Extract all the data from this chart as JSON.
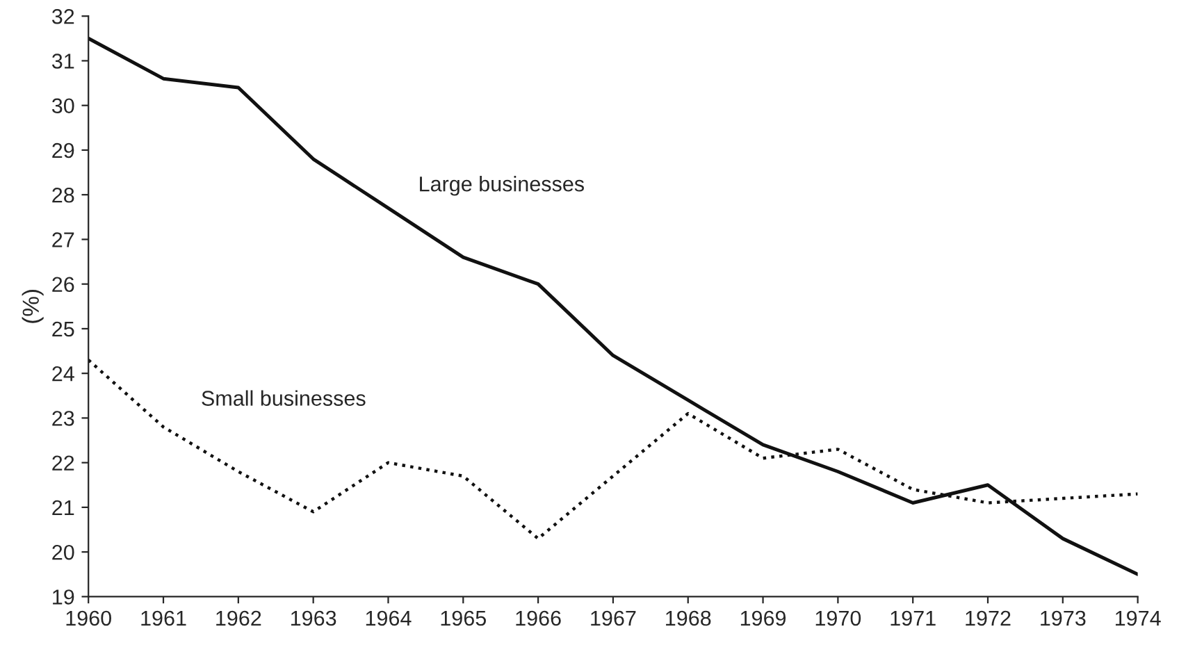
{
  "chart_data": {
    "type": "line",
    "ylabel": "(%)",
    "x": [
      1960,
      1961,
      1962,
      1963,
      1964,
      1965,
      1966,
      1967,
      1968,
      1969,
      1970,
      1971,
      1972,
      1973,
      1974
    ],
    "series": [
      {
        "name": "Large businesses",
        "color": "#111111",
        "line_style": "solid",
        "values": [
          31.5,
          30.6,
          30.4,
          28.8,
          27.7,
          26.6,
          26.0,
          24.4,
          23.4,
          22.4,
          21.8,
          21.1,
          21.5,
          20.3,
          19.5
        ]
      },
      {
        "name": "Small businesses",
        "color": "#111111",
        "line_style": "dotted",
        "values": [
          24.3,
          22.8,
          21.8,
          20.9,
          22.0,
          21.7,
          20.3,
          21.7,
          23.1,
          22.1,
          22.3,
          21.4,
          21.1,
          21.2,
          21.3
        ]
      }
    ],
    "xlim": [
      1960,
      1974
    ],
    "xticks": [
      1960,
      1961,
      1962,
      1963,
      1964,
      1965,
      1966,
      1967,
      1968,
      1969,
      1970,
      1971,
      1972,
      1973,
      1974
    ],
    "ylim": [
      19,
      32
    ],
    "yticks": [
      19,
      20,
      21,
      22,
      23,
      24,
      25,
      26,
      27,
      28,
      29,
      30,
      31,
      32
    ],
    "grid": false,
    "legend": false,
    "marker": "none"
  }
}
